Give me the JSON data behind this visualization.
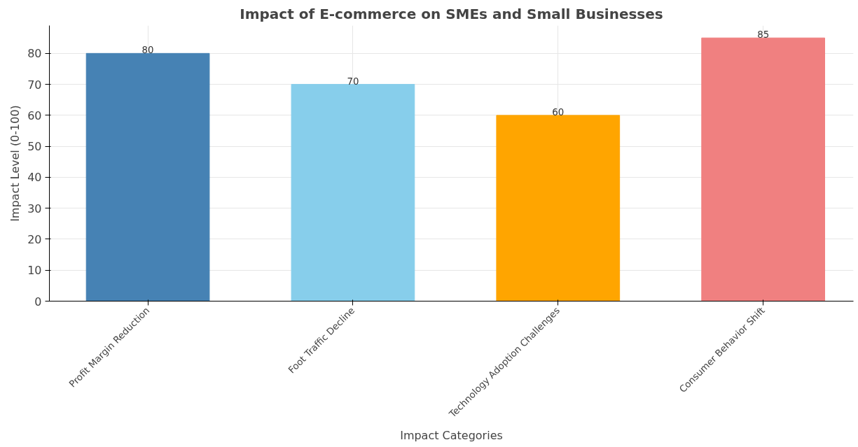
{
  "chart_data": {
    "type": "bar",
    "title": "Impact of E-commerce on SMEs and Small Businesses",
    "xlabel": "Impact Categories",
    "ylabel": "Impact Level (0-100)",
    "categories": [
      "Profit Margin Reduction",
      "Foot Traffic Decline",
      "Technology Adoption Challenges",
      "Consumer Behavior Shift"
    ],
    "values": [
      80,
      70,
      60,
      85
    ],
    "colors": [
      "#4682b4",
      "#87ceeb",
      "#ffa500",
      "#f08080"
    ],
    "ylim": [
      0,
      89
    ],
    "yticks": [
      0,
      10,
      20,
      30,
      40,
      50,
      60,
      70,
      80
    ],
    "grid": true,
    "data_labels": true
  }
}
